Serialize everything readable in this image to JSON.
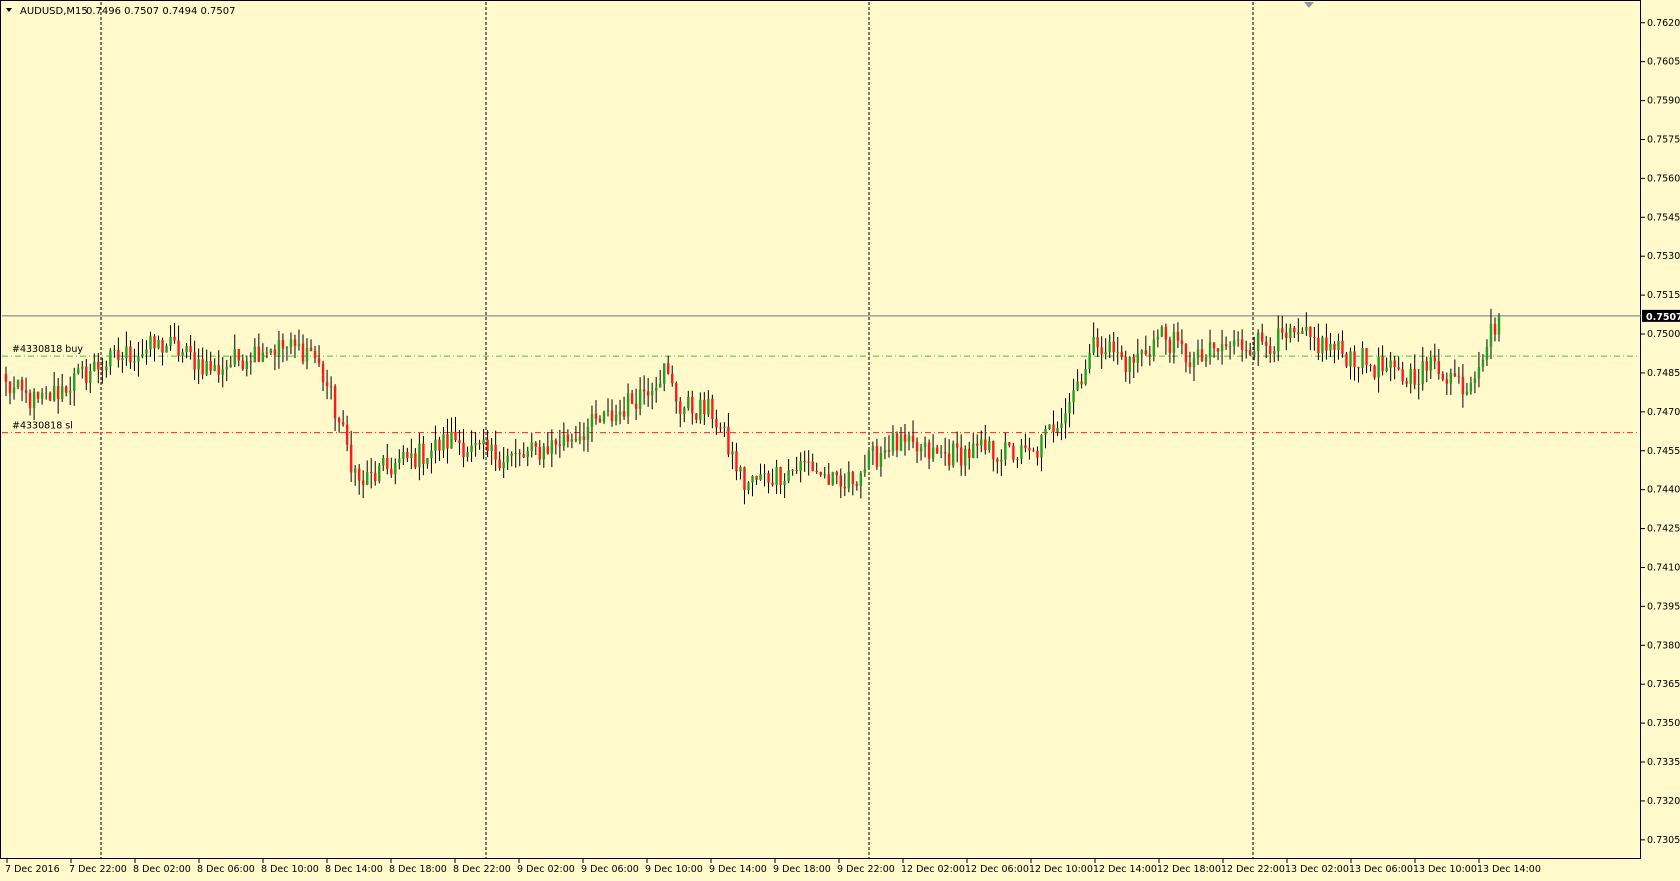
{
  "chart_header": {
    "symbol_label": "AUDUSD,M15",
    "ohlc_text": "0.7496 0.7507 0.7494 0.7507"
  },
  "orders": {
    "buy_label": "#4330818 buy",
    "sl_label": "#4330818 sl",
    "buy_price": 0.74915,
    "sl_price": 0.7462,
    "buy_color": "#32cd32",
    "sl_color": "#ff2020"
  },
  "current_price": {
    "label": "0.7507",
    "value": 0.7507
  },
  "colors": {
    "background": "#fff9cc",
    "bull": "#22a022",
    "bear": "#ff1a1a",
    "wick": "#000000",
    "grid_separator": "#000000",
    "price_line": "#6a7a8a"
  },
  "chart_data": {
    "type": "candlestick",
    "symbol": "AUDUSD",
    "timeframe": "M15",
    "ylim": [
      0.7298,
      0.7628
    ],
    "y_ticks": [
      "0.7620",
      "0.7605",
      "0.7590",
      "0.7575",
      "0.7560",
      "0.7545",
      "0.7530",
      "0.7515",
      "0.7500",
      "0.7485",
      "0.7470",
      "0.7455",
      "0.7440",
      "0.7425",
      "0.7410",
      "0.7395",
      "0.7380",
      "0.7365",
      "0.7350",
      "0.7335",
      "0.7320",
      "0.7305"
    ],
    "x_ticks": [
      "7 Dec 2016",
      "7 Dec 22:00",
      "8 Dec 02:00",
      "8 Dec 06:00",
      "8 Dec 10:00",
      "8 Dec 14:00",
      "8 Dec 18:00",
      "8 Dec 22:00",
      "9 Dec 02:00",
      "9 Dec 06:00",
      "9 Dec 10:00",
      "9 Dec 14:00",
      "9 Dec 18:00",
      "9 Dec 22:00",
      "12 Dec 02:00",
      "12 Dec 06:00",
      "12 Dec 10:00",
      "12 Dec 14:00",
      "12 Dec 18:00",
      "12 Dec 22:00",
      "13 Dec 02:00",
      "13 Dec 06:00",
      "13 Dec 10:00",
      "13 Dec 14:00"
    ],
    "anchor_closes": [
      [
        0,
        0.748
      ],
      [
        8,
        0.7473
      ],
      [
        22,
        0.7487
      ],
      [
        30,
        0.7492
      ],
      [
        40,
        0.7496
      ],
      [
        52,
        0.7486
      ],
      [
        64,
        0.7495
      ],
      [
        76,
        0.7494
      ],
      [
        80,
        0.748
      ],
      [
        88,
        0.7442
      ],
      [
        96,
        0.7449
      ],
      [
        104,
        0.7454
      ],
      [
        112,
        0.746
      ],
      [
        116,
        0.7455
      ],
      [
        128,
        0.7452
      ],
      [
        140,
        0.746
      ],
      [
        152,
        0.7469
      ],
      [
        164,
        0.7486
      ],
      [
        168,
        0.7472
      ],
      [
        176,
        0.747
      ],
      [
        184,
        0.7442
      ],
      [
        192,
        0.7446
      ],
      [
        200,
        0.745
      ],
      [
        208,
        0.744
      ],
      [
        220,
        0.7458
      ],
      [
        232,
        0.7453
      ],
      [
        244,
        0.7455
      ],
      [
        256,
        0.7453
      ],
      [
        264,
        0.7472
      ],
      [
        272,
        0.7498
      ],
      [
        280,
        0.7488
      ],
      [
        288,
        0.75
      ],
      [
        296,
        0.7489
      ],
      [
        304,
        0.7495
      ],
      [
        312,
        0.7497
      ],
      [
        324,
        0.7498
      ],
      [
        336,
        0.7491
      ],
      [
        348,
        0.7483
      ],
      [
        356,
        0.7488
      ],
      [
        364,
        0.748
      ],
      [
        368,
        0.7494
      ],
      [
        372,
        0.7507
      ]
    ]
  }
}
